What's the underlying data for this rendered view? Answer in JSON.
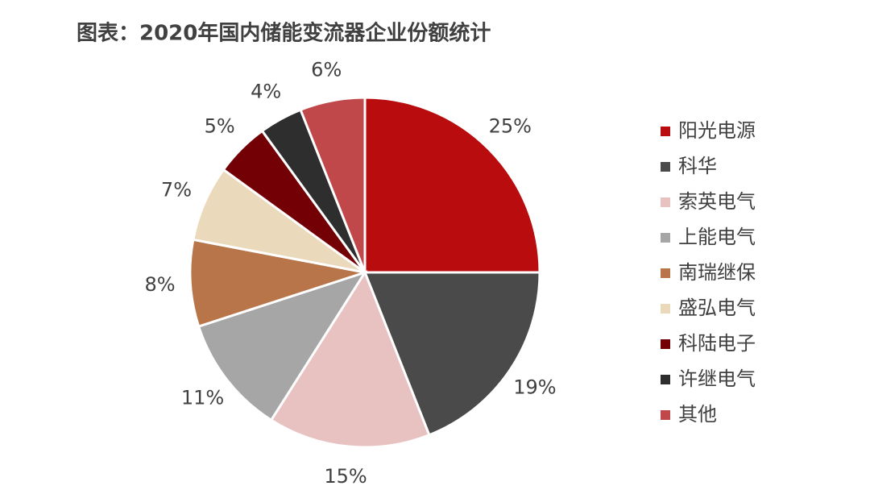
{
  "chart_data": {
    "type": "pie",
    "title": "图表：2020年国内储能变流器企业份额统计",
    "categories": [
      "阳光电源",
      "科华",
      "索英电气",
      "上能电气",
      "南瑞继保",
      "盛弘电气",
      "科陆电子",
      "许继电气",
      "其他"
    ],
    "values": [
      25,
      19,
      15,
      11,
      8,
      7,
      5,
      4,
      6
    ],
    "value_labels": [
      "25%",
      "19%",
      "15%",
      "11%",
      "8%",
      "7%",
      "5%",
      "4%",
      "6%"
    ],
    "colors": [
      "#b80c0e",
      "#4a4a4a",
      "#e8c1c1",
      "#a6a6a6",
      "#b8754a",
      "#ead9bb",
      "#730004",
      "#2e2e2e",
      "#c0474a"
    ],
    "legend": "right"
  }
}
